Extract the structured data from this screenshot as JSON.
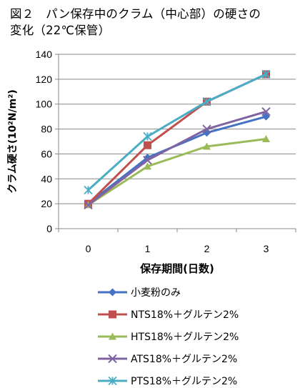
{
  "header": {
    "title_line1": "図２　パン保存中のクラム（中心部）の硬さの",
    "title_line2": "変化（22℃保管）"
  },
  "chart_data": {
    "type": "line",
    "title": "図２　パン保存中のクラム（中心部）の硬さの 変化（22℃保管）",
    "xlabel": "保存期間(日数)",
    "ylabel": "クラム硬さ(10²N/m²)",
    "x": [
      0,
      1,
      2,
      3
    ],
    "xticks": [
      "0",
      "1",
      "2",
      "3"
    ],
    "ylim": [
      0,
      140
    ],
    "yticks": [
      "0",
      "20",
      "40",
      "60",
      "80",
      "100",
      "120",
      "140"
    ],
    "grid": true,
    "legend_position": "bottom",
    "series": [
      {
        "name": "小麦粉のみ",
        "values": [
          20,
          57,
          77,
          90
        ],
        "color": "#4472C4",
        "marker": "diamond"
      },
      {
        "name": "NTS18%＋グルテン2%",
        "values": [
          20,
          67,
          102,
          124
        ],
        "color": "#C0504D",
        "marker": "square"
      },
      {
        "name": "HTS18%＋グルテン2%",
        "values": [
          19,
          50,
          66,
          72
        ],
        "color": "#9BBB59",
        "marker": "triangle"
      },
      {
        "name": "ATS18%＋グルテン2%",
        "values": [
          19,
          55,
          80,
          94
        ],
        "color": "#8064A2",
        "marker": "x"
      },
      {
        "name": "PTS18%＋グルテン2%",
        "values": [
          31,
          74,
          102,
          124
        ],
        "color": "#4BACC6",
        "marker": "star"
      }
    ]
  }
}
